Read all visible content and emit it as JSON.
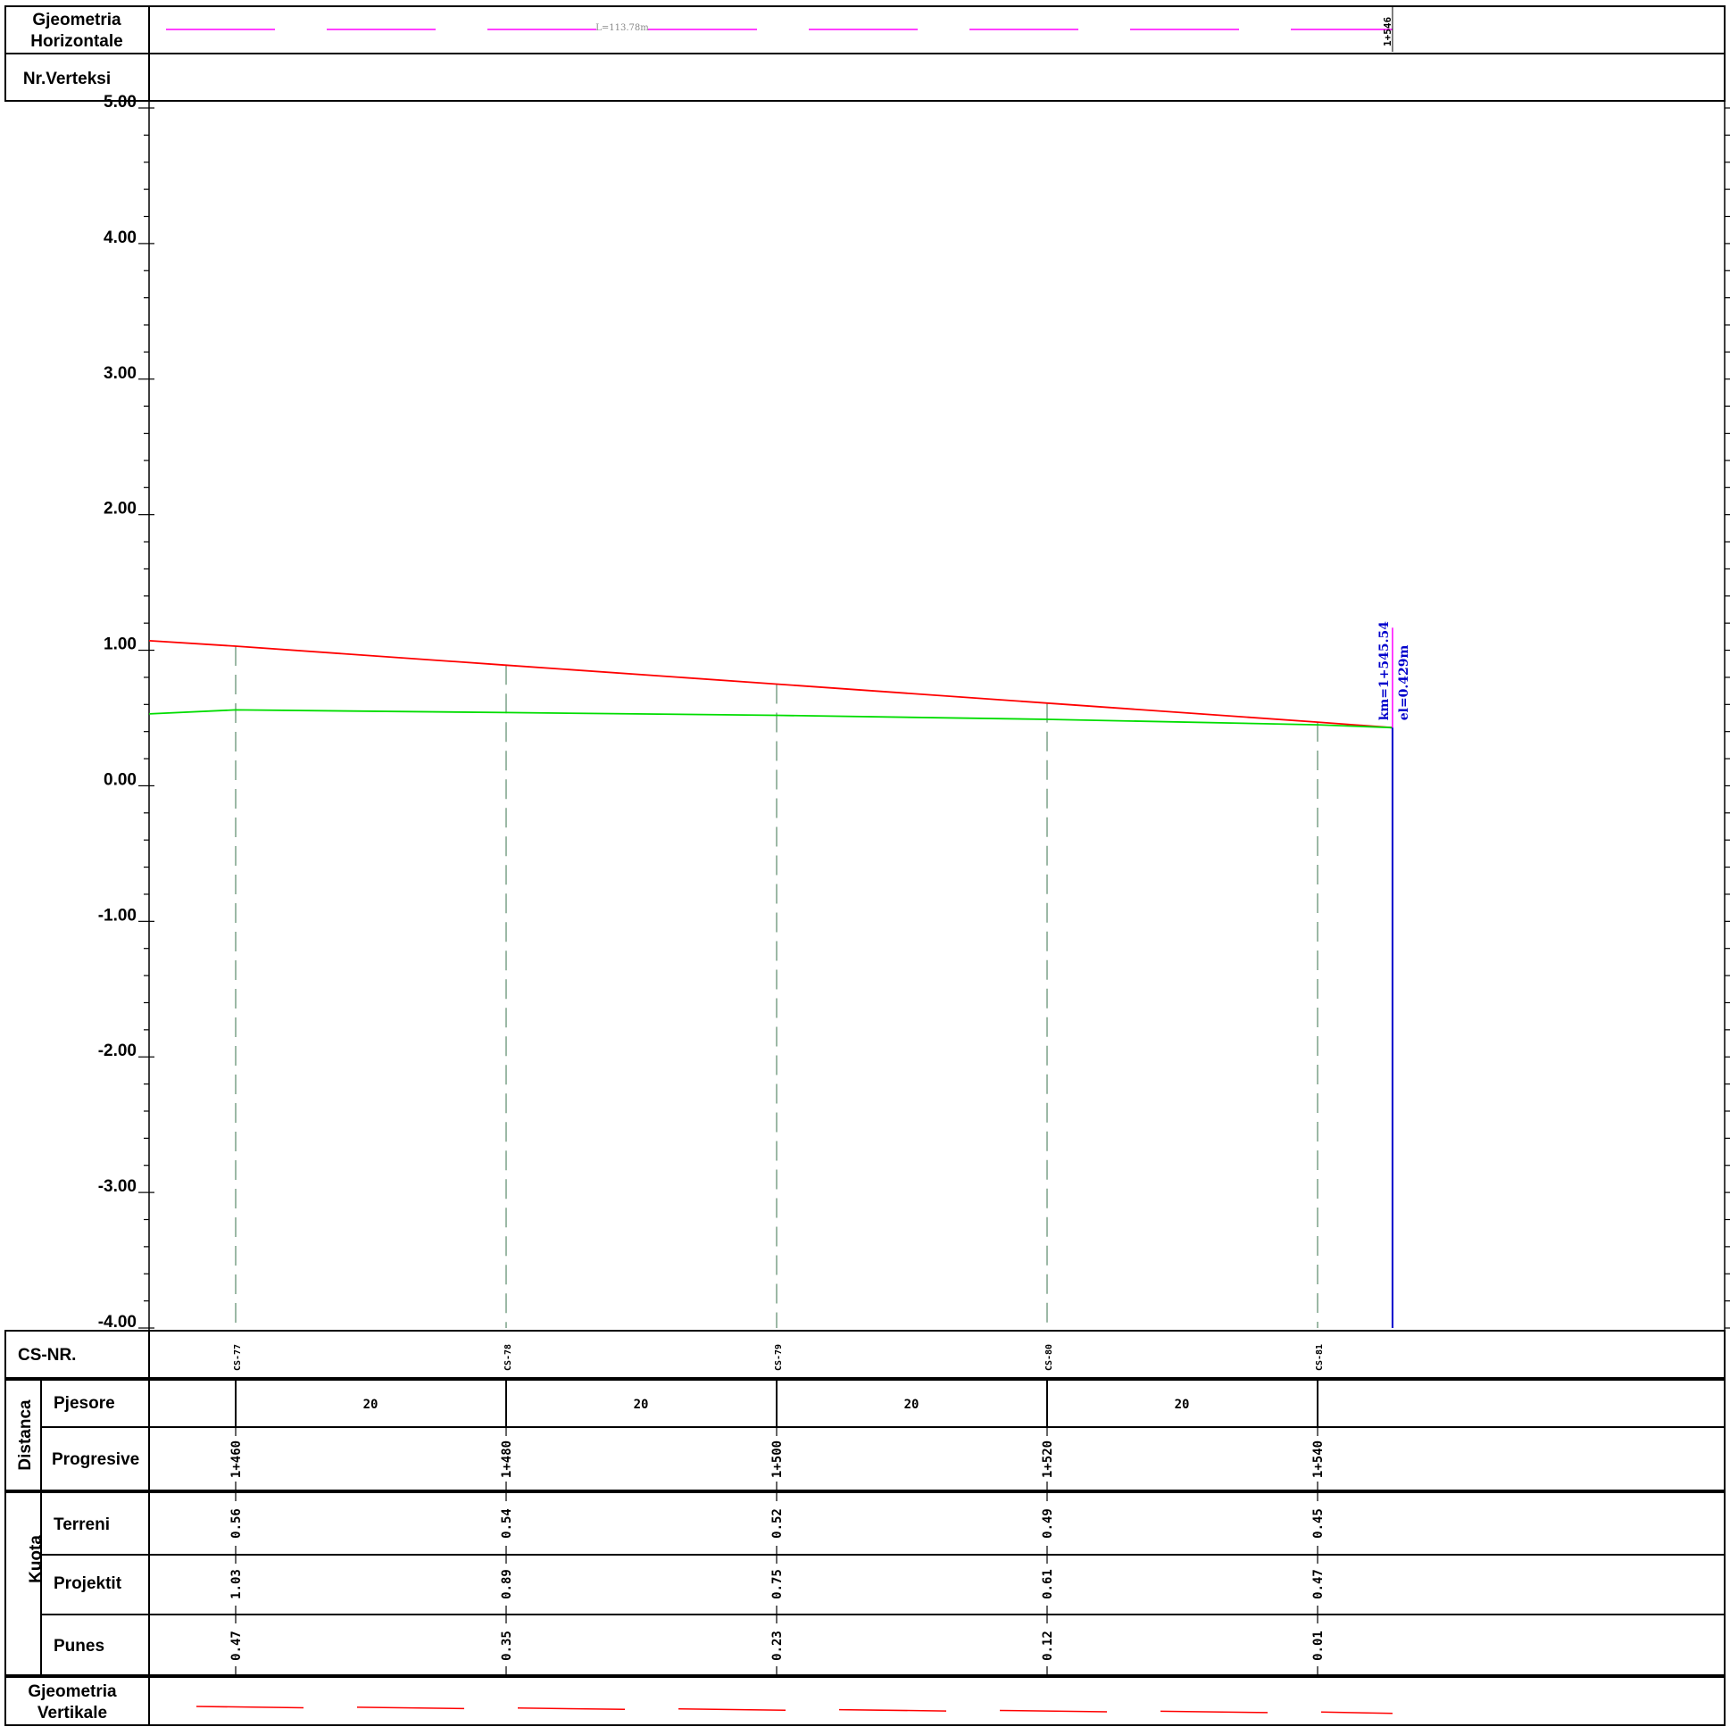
{
  "header": {
    "horizontal_geometry_label": [
      "Gjeometria",
      "Horizontale"
    ],
    "vertex_label": "Nr.Verteksi",
    "segment_length_label": "L=113.78m",
    "end_station_label": "1+546"
  },
  "table": {
    "cs_label": "CS-NR.",
    "distance_group_label": "Distanca",
    "pjesore_label": "Pjesore",
    "progresive_label": "Progresive",
    "kuota_group_label": "Kuota",
    "terreni_label": "Terreni",
    "projektit_label": "Projektit",
    "punes_label": "Punes",
    "vertical_geometry_label": [
      "Gjeometria",
      "Vertikale"
    ]
  },
  "colors": {
    "project_line": "#ff0000",
    "terrain_line": "#00dd00",
    "horizontal_geometry": "#ff00ff",
    "endpoint_marker": "#0000cc",
    "station_dash": "#5a8a6a",
    "vertical_geometry": "#ff0000"
  },
  "chart_data": {
    "type": "line",
    "title": "",
    "xlabel": "",
    "ylabel": "",
    "ylim": [
      -4.0,
      5.0
    ],
    "y_ticks": [
      "5.00",
      "4.00",
      "3.00",
      "2.00",
      "1.00",
      "0.00",
      "-1.00",
      "-2.00",
      "-3.00",
      "-4.00"
    ],
    "x_range_km": [
      1453.7,
      1545.54
    ],
    "stations": [
      {
        "cs": "CS-77",
        "chainage": 1460,
        "progresive": "1+460",
        "pjesore_next": "20",
        "terreni": "0.56",
        "projektit": "1.03",
        "punes": "0.47"
      },
      {
        "cs": "CS-78",
        "chainage": 1480,
        "progresive": "1+480",
        "pjesore_next": "20",
        "terreni": "0.54",
        "projektit": "0.89",
        "punes": "0.35"
      },
      {
        "cs": "CS-79",
        "chainage": 1500,
        "progresive": "1+500",
        "pjesore_next": "20",
        "terreni": "0.52",
        "projektit": "0.75",
        "punes": "0.23"
      },
      {
        "cs": "CS-80",
        "chainage": 1520,
        "progresive": "1+520",
        "pjesore_next": "20",
        "terreni": "0.49",
        "projektit": "0.61",
        "punes": "0.12"
      },
      {
        "cs": "CS-81",
        "chainage": 1540,
        "progresive": "1+540",
        "pjesore_next": "",
        "terreni": "0.45",
        "projektit": "0.47",
        "punes": "0.01"
      }
    ],
    "series": [
      {
        "values": [
          [
            1453.7,
            1.07
          ],
          [
            1460,
            1.03
          ],
          [
            1480,
            0.89
          ],
          [
            1500,
            0.75
          ],
          [
            1520,
            0.61
          ],
          [
            1540,
            0.47
          ],
          [
            1545.54,
            0.429
          ]
        ]
      },
      {
        "values": [
          [
            1453.7,
            0.53
          ],
          [
            1460,
            0.56
          ],
          [
            1480,
            0.54
          ],
          [
            1500,
            0.52
          ],
          [
            1520,
            0.49
          ],
          [
            1540,
            0.45
          ],
          [
            1545.54,
            0.429
          ]
        ]
      }
    ],
    "endpoint": {
      "chainage": 1545.54,
      "km_label": "km=1+545.54",
      "el_label": "el=0.429m",
      "elevation": 0.429
    }
  }
}
